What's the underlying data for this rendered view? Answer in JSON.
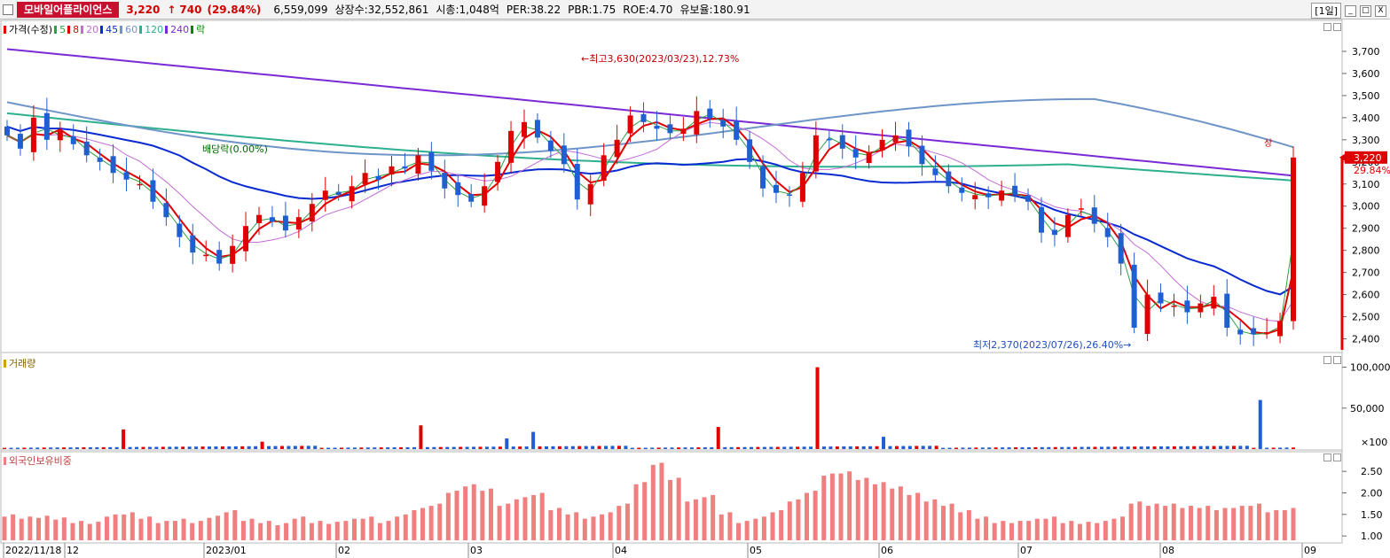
{
  "header": {
    "stock_name": "모바일어플라이언스",
    "price": "3,220",
    "arrow": "↑",
    "change": "740",
    "change_pct": "(29.84%)",
    "volume": "6,559,099",
    "shares": "상장수:32,552,861",
    "market_cap": "시총:1,048억",
    "per": "PER:38.22",
    "pbr": "PBR:1.75",
    "roe": "ROE:4.70",
    "float_ratio": "유보율:180.91",
    "period": "[1일]",
    "min_btn": "_",
    "max_btn": "□",
    "close_btn": "X"
  },
  "colors": {
    "up": "#e00000",
    "down": "#1f5fcf",
    "ma5": "#2ea043",
    "ma8": "#e00000",
    "ma20": "#c46bd6",
    "ma45": "#0a2bd1",
    "ma60": "#6f95c8",
    "ma120": "#2eb08f",
    "ma240": "#7a2bd6",
    "foreign": "#f08080"
  },
  "price_panel": {
    "legend": [
      {
        "label": "가격(수정)",
        "color": "#e00000"
      },
      {
        "label": "5",
        "color": "#2ea043"
      },
      {
        "label": "8",
        "color": "#e00000"
      },
      {
        "label": "20",
        "color": "#c46bd6"
      },
      {
        "label": "45",
        "color": "#0a2bd1"
      },
      {
        "label": "60",
        "color": "#6f95c8"
      },
      {
        "label": "120",
        "color": "#2eb08f"
      },
      {
        "label": "240",
        "color": "#7a2bd6"
      },
      {
        "label": "락",
        "color": "#008800"
      }
    ],
    "y_ticks": [
      "3,700",
      "3,600",
      "3,500",
      "3,400",
      "3,300",
      "3,200",
      "3,100",
      "3,000",
      "2,900",
      "2,800",
      "2,700",
      "2,600",
      "2,500",
      "2,400"
    ],
    "last_price_tag": "3,220",
    "last_pct_tag": "29.84%",
    "annotation_high": "최고3,630(2023/03/23),12.73%",
    "annotation_low": "최저2,370(2023/07/26),26.40%",
    "annotation_dividend": "배당락(0.00%)",
    "annotation_up": "상"
  },
  "volume_panel": {
    "legend": "거래량",
    "y_ticks": [
      "100,000",
      "50,000"
    ],
    "unit": "×100"
  },
  "foreign_panel": {
    "legend": "외국인보유비중",
    "y_ticks": [
      "2.50",
      "2.00",
      "1.50",
      "1.00"
    ]
  },
  "x_axis": {
    "labels": [
      "2022/11/18",
      "12",
      "2023/01",
      "02",
      "03",
      "04",
      "05",
      "06",
      "07",
      "08",
      "09"
    ]
  },
  "chart_data": {
    "type": "candlestick",
    "ylim": [
      2350,
      3780
    ],
    "series_key_points": [
      {
        "name": "high",
        "date": "2023/03/23",
        "value": 3630
      },
      {
        "name": "low",
        "date": "2023/07/26",
        "value": 2370
      },
      {
        "name": "last",
        "value": 3220
      }
    ],
    "close_path": [
      3320,
      3260,
      3400,
      3300,
      3340,
      3280,
      3230,
      3200,
      3150,
      3120,
      3100,
      3020,
      2950,
      2860,
      2790,
      2780,
      2740,
      2820,
      2910,
      2960,
      2930,
      2890,
      2950,
      3010,
      3070,
      3050,
      3090,
      3150,
      3120,
      3180,
      3170,
      3230,
      3160,
      3080,
      3050,
      3020,
      3090,
      3200,
      3340,
      3380,
      3310,
      3250,
      3190,
      3030,
      3100,
      3230,
      3300,
      3410,
      3380,
      3350,
      3330,
      3350,
      3430,
      3400,
      3360,
      3300,
      3200,
      3080,
      3060,
      3050,
      3150,
      3320,
      3300,
      3260,
      3220,
      3240,
      3300,
      3320,
      3270,
      3190,
      3140,
      3090,
      3060,
      3050,
      3040,
      3070,
      3050,
      3020,
      2880,
      2870,
      2960,
      2990,
      2920,
      2860,
      2740,
      2450,
      2600,
      2560,
      2550,
      2520,
      2560,
      2590,
      2450,
      2420,
      2420,
      2430,
      2480,
      3220
    ],
    "foreign_ratio": [
      1.45,
      1.4,
      1.42,
      1.38,
      1.3,
      1.28,
      1.45,
      1.5,
      1.4,
      1.3,
      1.35,
      1.3,
      1.42,
      1.55,
      1.35,
      1.3,
      1.25,
      1.4,
      1.3,
      1.28,
      1.35,
      1.4,
      1.3,
      1.45,
      1.6,
      1.7,
      2.0,
      2.15,
      2.05,
      1.7,
      1.85,
      1.95,
      1.6,
      1.5,
      1.4,
      1.5,
      1.7,
      2.2,
      2.65,
      2.3,
      1.8,
      1.9,
      1.5,
      1.3,
      1.4,
      1.55,
      1.8,
      2.0,
      2.4,
      2.45,
      2.3,
      2.2,
      2.1,
      1.95,
      1.8,
      1.7,
      1.55,
      1.4,
      1.3,
      1.3,
      1.35,
      1.4,
      1.3,
      1.28,
      1.3,
      1.4,
      1.75,
      1.7,
      1.7,
      1.65,
      1.65,
      1.6,
      1.65,
      1.7,
      1.55,
      1.6
    ]
  }
}
